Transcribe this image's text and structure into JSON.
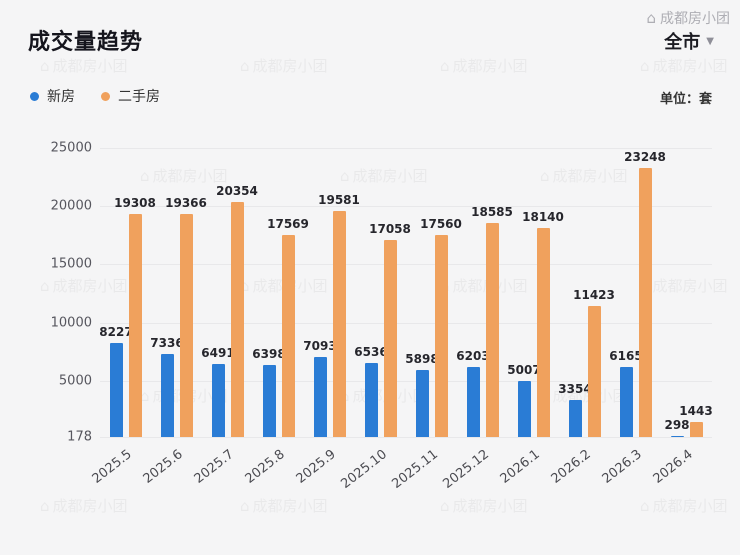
{
  "header": {
    "title": "成交量趋势",
    "region_selector": "全市",
    "unit_label": "单位：套"
  },
  "legend": [
    {
      "label": "新房",
      "color": "#2a7cd5"
    },
    {
      "label": "二手房",
      "color": "#f0a15d"
    }
  ],
  "watermark": {
    "text": "成都房小团"
  },
  "icons": {
    "caret": "▼",
    "house": "⌂"
  },
  "chart_data": {
    "type": "bar",
    "categories": [
      "2025.5",
      "2025.6",
      "2025.7",
      "2025.8",
      "2025.9",
      "2025.10",
      "2025.11",
      "2025.12",
      "2026.1",
      "2026.2",
      "2026.3",
      "2026.4"
    ],
    "series": [
      {
        "name": "新房",
        "color": "#2a7cd5",
        "values": [
          8227,
          7336,
          6491,
          6398,
          7093,
          6536,
          5898,
          6203,
          5007,
          3354,
          6165,
          298
        ]
      },
      {
        "name": "二手房",
        "color": "#f0a15d",
        "values": [
          19308,
          19366,
          20354,
          17569,
          19581,
          17058,
          17560,
          18585,
          18140,
          11423,
          23248,
          1443
        ]
      }
    ],
    "title": "成交量趋势",
    "xlabel": "",
    "ylabel": "",
    "ylim": [
      178,
      25000
    ],
    "yticks": [
      25000,
      20000,
      15000,
      10000,
      5000,
      178
    ],
    "grid": true,
    "legend_position": "top-left"
  }
}
